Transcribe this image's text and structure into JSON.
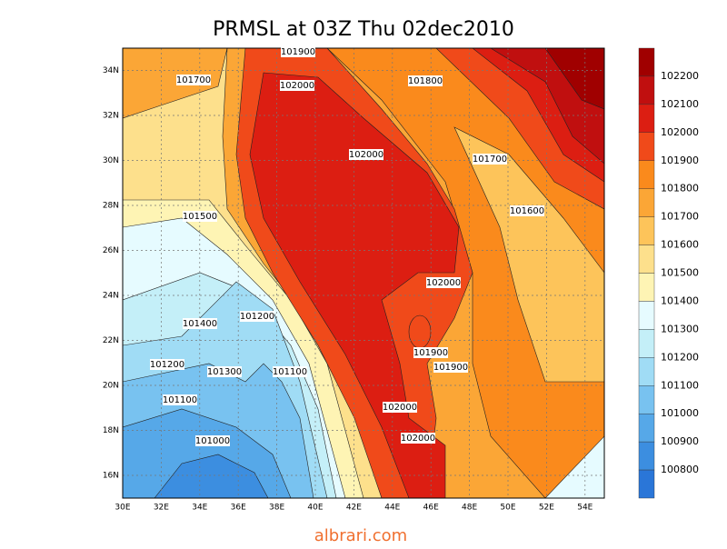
{
  "title": "PRMSL at 03Z Thu 02dec2010",
  "lon_labels": [
    "30E",
    "32E",
    "34E",
    "36E",
    "38E",
    "40E",
    "42E",
    "44E",
    "46E",
    "48E",
    "50E",
    "52E",
    "54E"
  ],
  "lat_labels": [
    "16N",
    "18N",
    "20N",
    "22N",
    "24N",
    "26N",
    "28N",
    "30N",
    "32N",
    "34N"
  ],
  "contour_labels": [
    "101900",
    "101700",
    "102000",
    "101800",
    "102000",
    "101700",
    "101600",
    "101500",
    "102000",
    "101200",
    "101400",
    "101900",
    "101900",
    "101200",
    "101300",
    "101100",
    "102000",
    "101100",
    "102000",
    "101000"
  ],
  "colorbar": {
    "levels": [
      102200,
      102100,
      102000,
      101900,
      101800,
      101700,
      101600,
      101500,
      101400,
      101300,
      101200,
      101100,
      101000,
      100900,
      100800
    ],
    "colors": [
      "#a00000",
      "#c00f0f",
      "#dc1e12",
      "#f04a1a",
      "#fa8a1c",
      "#fba636",
      "#fdc45a",
      "#fde08c",
      "#fef4b4",
      "#e6fbff",
      "#c4eff8",
      "#a0dcf5",
      "#78c2f0",
      "#56a8e8",
      "#3c8ee0",
      "#2a76d8"
    ]
  },
  "footer": "albrari.com"
}
